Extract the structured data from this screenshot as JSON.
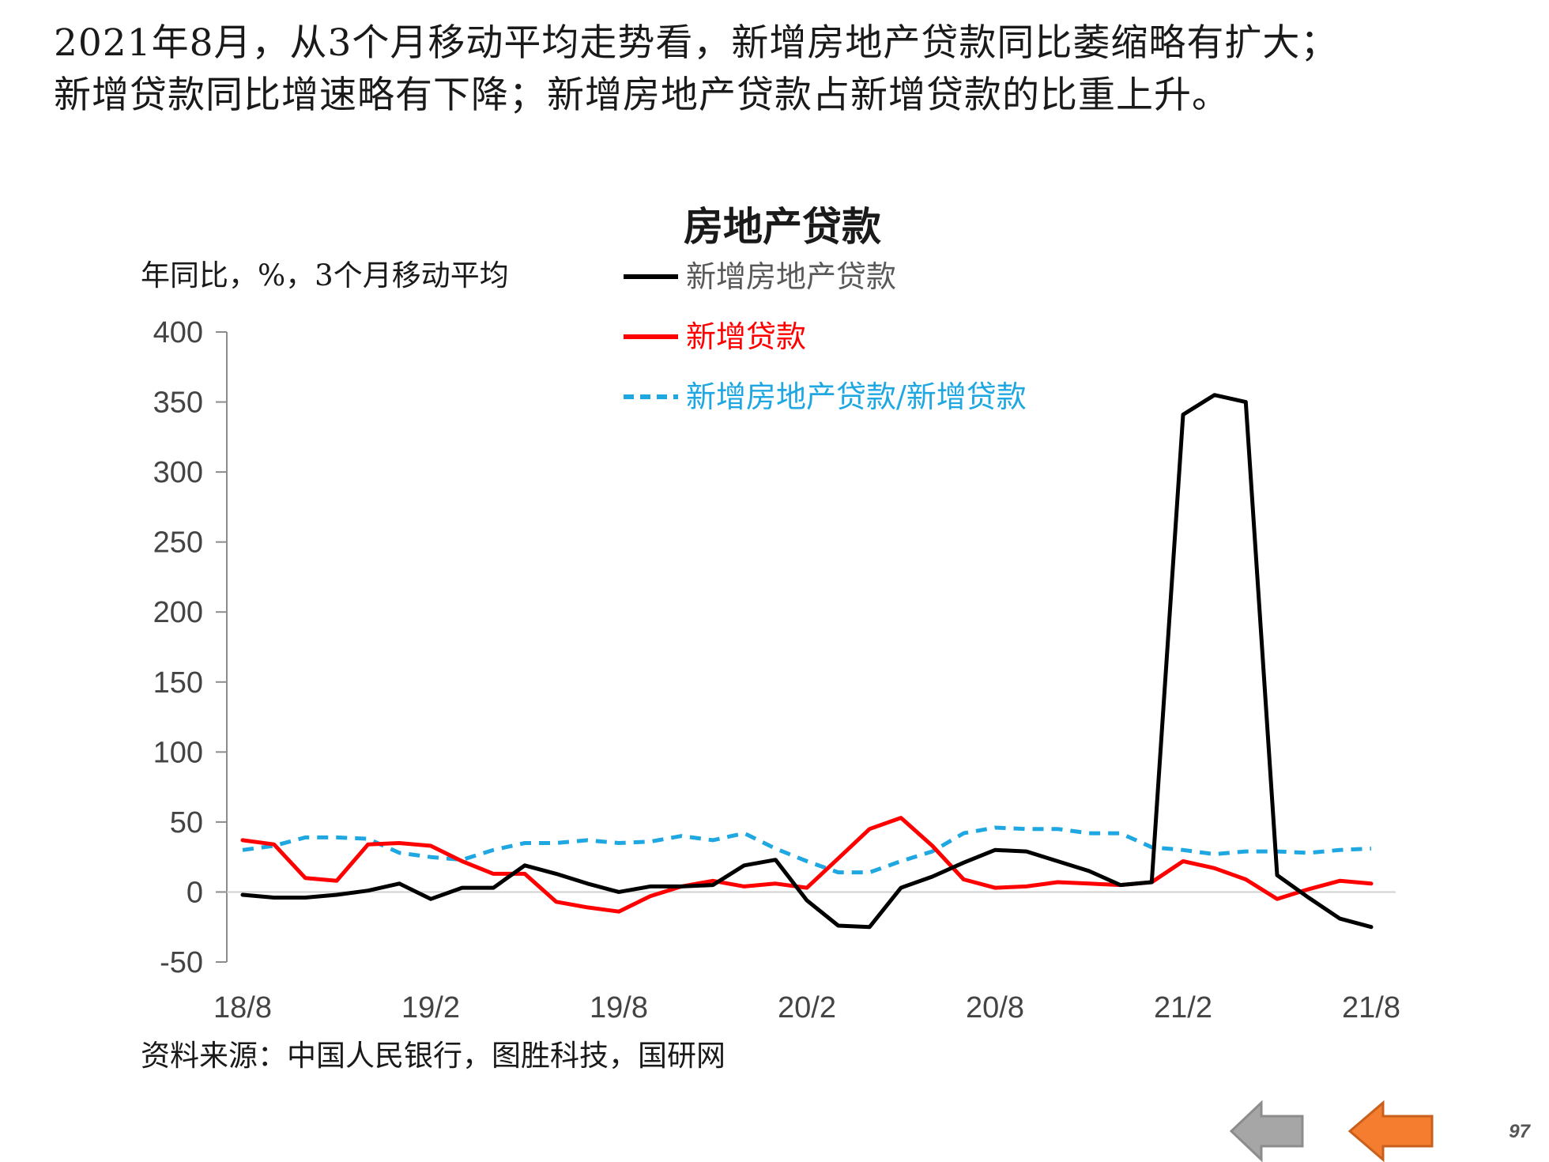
{
  "headline": {
    "line1": "2021年8月，从3个月移动平均走势看，新增房地产贷款同比萎缩略有扩大；",
    "line2": "新增贷款同比增速略有下降；新增房地产贷款占新增贷款的比重上升。"
  },
  "source": "资料来源：中国人民银行，图胜科技，国研网",
  "page_number": "97",
  "nav": {
    "back_icon": "gray-left-arrow-icon",
    "prev_icon": "orange-left-arrow-icon"
  },
  "colors": {
    "black_series": "#000000",
    "red_series": "#ff0000",
    "blue_series": "#1ea7e1",
    "prev_arrow": "#f47d30",
    "back_arrow": "#a6a6a6"
  },
  "chart_data": {
    "type": "line",
    "title": "房地产贷款",
    "ylabel": "年同比，%，3个月移动平均",
    "ylim": [
      -50,
      400
    ],
    "yticks": [
      400,
      350,
      300,
      250,
      200,
      150,
      100,
      50,
      0,
      -50
    ],
    "x_tick_labels": [
      "18/8",
      "19/2",
      "19/8",
      "20/2",
      "20/8",
      "21/2",
      "21/8"
    ],
    "x": [
      "18/8",
      "18/9",
      "18/10",
      "18/11",
      "18/12",
      "19/1",
      "19/2",
      "19/3",
      "19/4",
      "19/5",
      "19/6",
      "19/7",
      "19/8",
      "19/9",
      "19/10",
      "19/11",
      "19/12",
      "20/1",
      "20/2",
      "20/3",
      "20/4",
      "20/5",
      "20/6",
      "20/7",
      "20/8",
      "20/9",
      "20/10",
      "20/11",
      "20/12",
      "21/1",
      "21/2",
      "21/3",
      "21/4",
      "21/5",
      "21/6",
      "21/7",
      "21/8"
    ],
    "legend_position": "top",
    "series": [
      {
        "name": "新增房地产贷款",
        "color": "#000000",
        "style": "solid",
        "values": [
          -2,
          -4,
          -4,
          -2,
          1,
          6,
          -5,
          3,
          3,
          19,
          13,
          6,
          0,
          4,
          4,
          5,
          19,
          23,
          -6,
          -24,
          -25,
          3,
          11,
          21,
          30,
          29,
          22,
          15,
          5,
          7,
          341,
          355,
          350,
          12,
          -4,
          -19,
          -25
        ]
      },
      {
        "name": "新增贷款",
        "color": "#ff0000",
        "style": "solid",
        "values": [
          37,
          34,
          10,
          8,
          34,
          35,
          33,
          22,
          13,
          13,
          -7,
          -11,
          -14,
          -3,
          4,
          8,
          4,
          6,
          3,
          24,
          45,
          53,
          33,
          9,
          3,
          4,
          7,
          6,
          5,
          7,
          22,
          17,
          9,
          -5,
          2,
          8,
          6
        ]
      },
      {
        "name": "新增房地产贷款/新增贷款",
        "color": "#1ea7e1",
        "style": "dashed",
        "values": [
          30,
          33,
          39,
          39,
          38,
          28,
          25,
          23,
          30,
          35,
          35,
          37,
          35,
          36,
          40,
          37,
          42,
          31,
          22,
          14,
          14,
          22,
          29,
          42,
          46,
          45,
          45,
          42,
          42,
          32,
          30,
          27,
          29,
          29,
          28,
          30,
          31
        ]
      }
    ]
  }
}
